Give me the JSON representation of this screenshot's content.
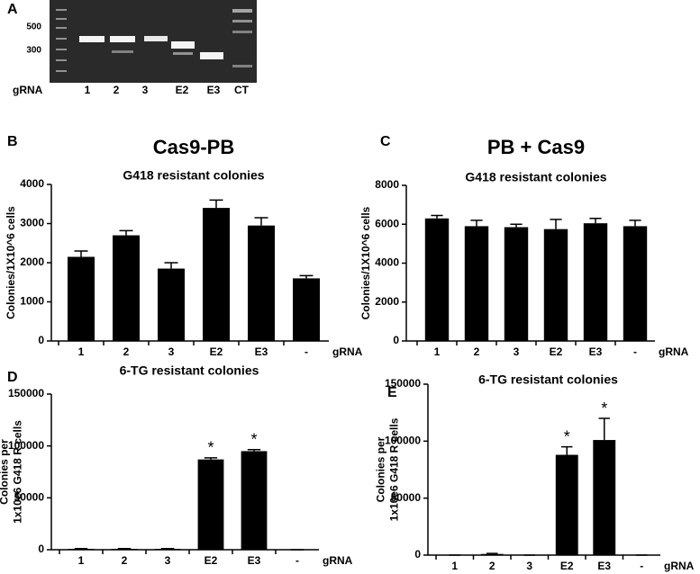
{
  "panel_a": {
    "label": "A",
    "markers": [
      "500",
      "300"
    ],
    "row_label": "gRNA",
    "lanes": [
      "1",
      "2",
      "3",
      "E2",
      "E3",
      "CT"
    ]
  },
  "chart_data": [
    {
      "type": "bar",
      "panel": "B",
      "title": "Cas9-PB",
      "subtitle": "G418 resistant colonies",
      "ylabel": [
        "Colonies/1X10^6 cells"
      ],
      "xlabel": "gRNA",
      "categories": [
        "1",
        "2",
        "3",
        "E2",
        "E3",
        "-"
      ],
      "values": [
        2150,
        2700,
        1850,
        3400,
        2950,
        1600
      ],
      "errors": [
        150,
        120,
        150,
        200,
        200,
        70
      ],
      "color": "#000000",
      "ylim": [
        0,
        4000
      ],
      "yticks": [
        0,
        1000,
        2000,
        3000,
        4000
      ]
    },
    {
      "type": "bar",
      "panel": "C",
      "title": "PB + Cas9",
      "subtitle": "G418 resistant colonies",
      "ylabel": [
        "Colonies/1X10^6 cells"
      ],
      "xlabel": "gRNA",
      "categories": [
        "1",
        "2",
        "3",
        "E2",
        "E3",
        "-"
      ],
      "values": [
        6300,
        5900,
        5850,
        5750,
        6050,
        5900
      ],
      "errors": [
        150,
        300,
        150,
        500,
        250,
        300
      ],
      "color": "#000000",
      "ylim": [
        0,
        8000
      ],
      "yticks": [
        0,
        2000,
        4000,
        6000,
        8000
      ]
    },
    {
      "type": "bar",
      "panel": "D",
      "subtitle": "6-TG resistant colonies",
      "ylabel": [
        "Colonies per",
        "1x10e6 G418 R cells"
      ],
      "xlabel": "gRNA",
      "categories": [
        "1",
        "2",
        "3",
        "E2",
        "E3",
        "-"
      ],
      "values": [
        800,
        800,
        800,
        87000,
        95000,
        0
      ],
      "errors": [
        300,
        300,
        300,
        1500,
        1500,
        0
      ],
      "annotations": [
        {
          "text": "*",
          "category": 3
        },
        {
          "text": "*",
          "category": 4
        }
      ],
      "color": "#000000",
      "ylim": [
        0,
        150000
      ],
      "yticks": [
        0,
        50000,
        100000,
        150000
      ]
    },
    {
      "type": "bar",
      "panel": "E",
      "subtitle": "6-TG resistant colonies",
      "ylabel": [
        "Colonies per",
        "1x10e6 G418 R cells"
      ],
      "xlabel": "gRNA",
      "categories": [
        "1",
        "2",
        "3",
        "E2",
        "E3",
        "-"
      ],
      "values": [
        0,
        1000,
        0,
        88000,
        101000,
        0
      ],
      "errors": [
        0,
        500,
        0,
        7000,
        19000,
        0
      ],
      "annotations": [
        {
          "text": "*",
          "category": 3
        },
        {
          "text": "*",
          "category": 4
        }
      ],
      "color": "#000000",
      "ylim": [
        0,
        150000
      ],
      "yticks": [
        0,
        50000,
        100000,
        150000
      ]
    }
  ]
}
